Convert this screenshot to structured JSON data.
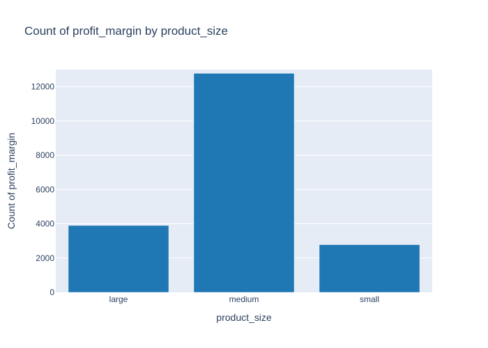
{
  "chart_data": {
    "type": "bar",
    "title": "Count of profit_margin by product_size",
    "xlabel": "product_size",
    "ylabel": "Count of profit_margin",
    "categories": [
      "large",
      "medium",
      "small"
    ],
    "values": [
      3900,
      12780,
      2780
    ],
    "ylim": [
      0,
      13000
    ],
    "yticks": [
      0,
      2000,
      4000,
      6000,
      8000,
      10000,
      12000
    ],
    "grid": true,
    "legend": "none",
    "colors": {
      "bar": "#1f77b4",
      "plot_background": "#e5ecf6",
      "gridline": "#ffffff",
      "text": "#2a3f5f"
    }
  }
}
